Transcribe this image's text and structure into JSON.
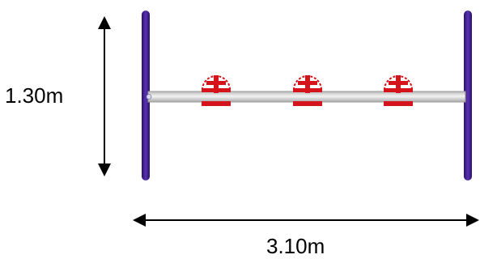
{
  "dimensions": {
    "height_label": "1.30m",
    "width_label": "3.10m"
  },
  "colors": {
    "post": "#3d1a8c",
    "bar_fill": "#e2e2e2",
    "bar_edge": "#9a9a9a",
    "fixture_red": "#d4141a",
    "arrow": "#000000"
  },
  "fixtures": {
    "count": 3,
    "icon": "red-clamp-icon"
  }
}
